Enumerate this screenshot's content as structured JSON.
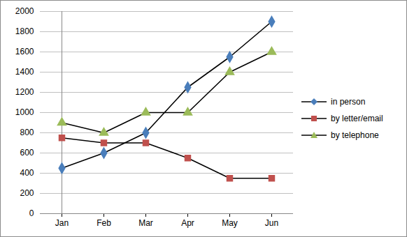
{
  "chart_data": {
    "type": "line",
    "categories": [
      "Jan",
      "Feb",
      "Mar",
      "Apr",
      "May",
      "Jun"
    ],
    "series": [
      {
        "name": "in person",
        "color": "#4a7ebb",
        "marker": "diamond",
        "values": [
          450,
          600,
          800,
          1250,
          1550,
          1900
        ]
      },
      {
        "name": "by letter/email",
        "color": "#c0504d",
        "marker": "square",
        "values": [
          750,
          700,
          700,
          550,
          350,
          350
        ]
      },
      {
        "name": "by telephone",
        "color": "#9bbb59",
        "marker": "triangle",
        "values": [
          900,
          800,
          1000,
          1000,
          1400,
          1600
        ]
      }
    ],
    "ylim": [
      0,
      2000
    ],
    "yticks": [
      0,
      200,
      400,
      600,
      800,
      1000,
      1200,
      1400,
      1600,
      1800,
      2000
    ],
    "grid": true,
    "legend": "right"
  }
}
